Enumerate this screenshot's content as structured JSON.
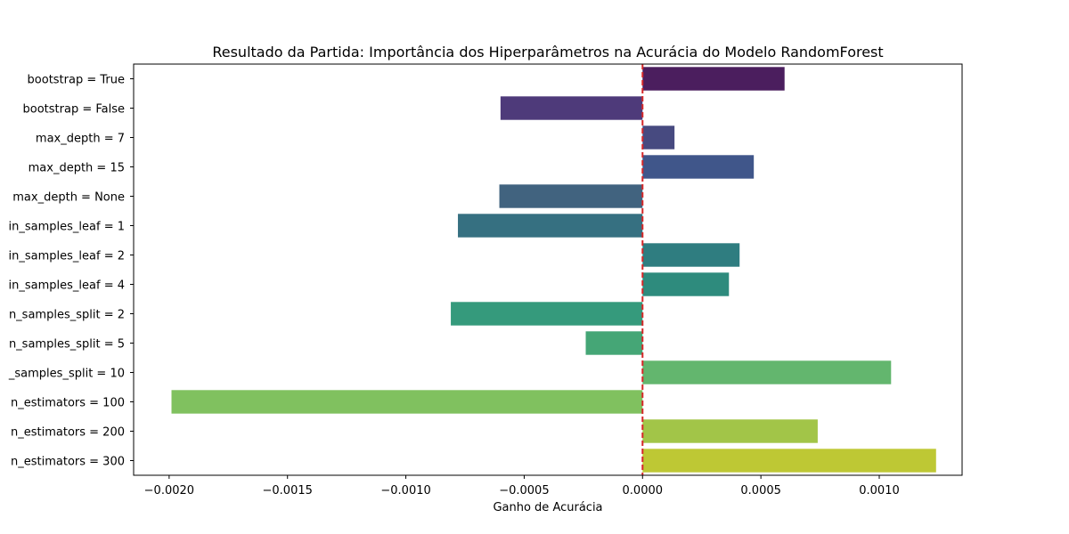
{
  "chart_data": {
    "type": "bar",
    "orientation": "horizontal",
    "title": "Resultado da Partida: Importância dos Hiperparâmetros na Acurácia do Modelo RandomForest",
    "xlabel": "Ganho de Acurácia",
    "ylabel": "",
    "xlim": [
      -0.00215,
      0.00135
    ],
    "x_ticks": [
      -0.002,
      -0.0015,
      -0.001,
      -0.0005,
      0.0,
      0.0005,
      0.001
    ],
    "x_tick_labels": [
      "−0.0020",
      "−0.0015",
      "−0.0010",
      "−0.0005",
      "0.0000",
      "0.0005",
      "0.0010"
    ],
    "categories": [
      "bootstrap = True",
      "bootstrap = False",
      "max_depth = 7",
      "max_depth = 15",
      "max_depth = None",
      "in_samples_leaf = 1",
      "in_samples_leaf = 2",
      "in_samples_leaf = 4",
      "n_samples_split = 2",
      "n_samples_split = 5",
      "_samples_split = 10",
      "n_estimators = 100",
      "n_estimators = 200",
      "n_estimators = 300"
    ],
    "values": [
      0.0006,
      -0.0006,
      0.000135,
      0.00047,
      -0.000605,
      -0.00078,
      0.00041,
      0.000365,
      -0.00081,
      -0.00024,
      0.00105,
      -0.00199,
      0.00074,
      0.00124
    ],
    "colors": [
      "#4b1e5e",
      "#4e3a7a",
      "#474a80",
      "#40568a",
      "#41637f",
      "#367081",
      "#2f7d80",
      "#2e8b7d",
      "#359a7c",
      "#45a676",
      "#63b66e",
      "#80c15f",
      "#a2c548",
      "#bec834"
    ],
    "reference_line": {
      "x": 0.0,
      "color": "#d62728",
      "style": "dashed"
    },
    "grid": false,
    "legend": "none"
  }
}
